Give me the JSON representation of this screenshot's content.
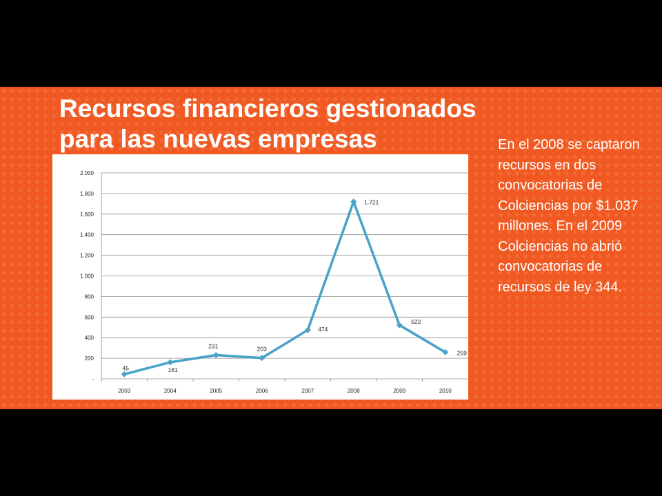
{
  "slide": {
    "title_lines": [
      "Recursos financieros gestionados",
      "para las nuevas empresas"
    ],
    "side_text": "En el 2008 se captaron recursos en dos convocatorias de Colciencias por $1.037 millones. En el 2009 Colciencias no abrió convocatorias de recursos de ley 344.",
    "colors": {
      "background": "#000000",
      "band": "#f05a22",
      "line": "#4aa3c8",
      "text": "#ffffff"
    }
  },
  "chart_data": {
    "type": "line",
    "title": "",
    "xlabel": "",
    "ylabel": "",
    "categories": [
      "2003",
      "2004",
      "2005",
      "2006",
      "2007",
      "2008",
      "2009",
      "2010"
    ],
    "values": [
      45,
      161,
      231,
      203,
      474,
      1721,
      522,
      259
    ],
    "data_labels": [
      "45",
      "161",
      "231",
      "203",
      "474",
      "1.721",
      "522",
      "259"
    ],
    "ylim": [
      0,
      2000
    ],
    "yticks": [
      0,
      200,
      400,
      600,
      800,
      1000,
      1200,
      1400,
      1600,
      1800,
      2000
    ],
    "ytick_labels": [
      "-",
      "200",
      "400",
      "600",
      "800",
      "1.000",
      "1.200",
      "1.400",
      "1.600",
      "1.800",
      "2.000"
    ],
    "grid": true,
    "legend": "none",
    "line_color": "#4aa3c8"
  }
}
